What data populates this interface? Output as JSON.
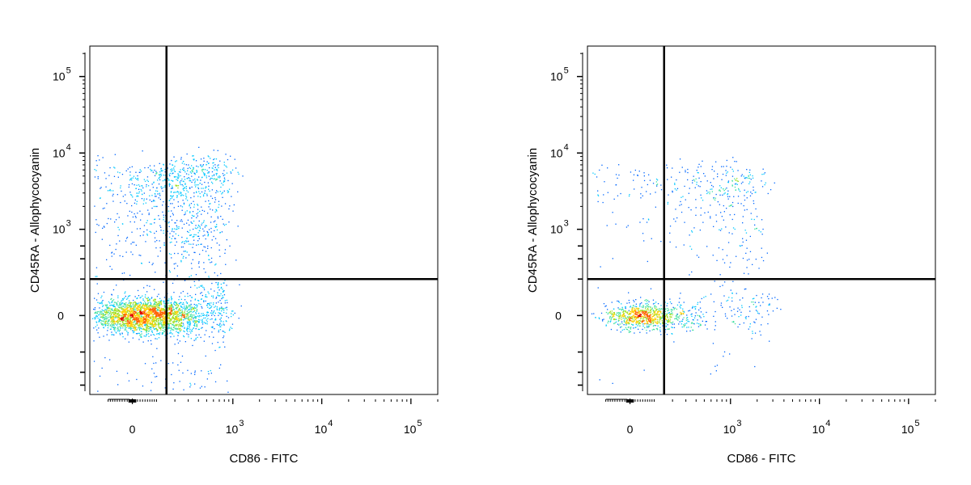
{
  "chart_data": [
    {
      "type": "scatter",
      "title": "",
      "xlabel": "CD86 - FITC",
      "ylabel": "CD45RA - Allophycocyanin",
      "xscale": "biexponential",
      "yscale": "biexponential",
      "xlim": [
        -200,
        200000
      ],
      "ylim": [
        -800,
        250000
      ],
      "x_ticks": [
        {
          "value": 0,
          "base": "0",
          "exp": ""
        },
        {
          "value": 1000,
          "base": "10",
          "exp": "3"
        },
        {
          "value": 10000,
          "base": "10",
          "exp": "4"
        },
        {
          "value": 100000,
          "base": "10",
          "exp": "5"
        }
      ],
      "y_ticks": [
        {
          "value": 0,
          "base": "0",
          "exp": ""
        },
        {
          "value": 1000,
          "base": "10",
          "exp": "3"
        },
        {
          "value": 10000,
          "base": "10",
          "exp": "4"
        },
        {
          "value": 100000,
          "base": "10",
          "exp": "5"
        }
      ],
      "quadrant_gate": {
        "x": 150,
        "y": 200
      },
      "colormap": [
        "#1a1ab0",
        "#0066ff",
        "#00c8ff",
        "#40e0a0",
        "#a0e020",
        "#ffd000",
        "#ff6000",
        "#e00000"
      ],
      "grid": false,
      "legend": "none",
      "point_clusters": [
        {
          "cx": 20,
          "cy": 0,
          "sx": 90,
          "sy": 40,
          "n": 1700
        },
        {
          "cx": 200,
          "cy": 0,
          "sx": 120,
          "sy": 40,
          "n": 600
        },
        {
          "cx": 550,
          "cy": 20,
          "sx": 250,
          "sy": 80,
          "n": 250
        },
        {
          "cx": 120,
          "cy": 3000,
          "sx": 150,
          "sy": 2000,
          "n": 450
        },
        {
          "cx": 450,
          "cy": 4500,
          "sx": 300,
          "sy": 2500,
          "n": 350
        },
        {
          "cx": 250,
          "cy": 500,
          "sx": 250,
          "sy": 600,
          "n": 350
        }
      ]
    },
    {
      "type": "scatter",
      "title": "",
      "xlabel": "CD86 - FITC",
      "ylabel": "CD45RA - Allophycocyanin",
      "xscale": "biexponential",
      "yscale": "biexponential",
      "xlim": [
        -200,
        200000
      ],
      "ylim": [
        -800,
        250000
      ],
      "x_ticks": [
        {
          "value": 0,
          "base": "0",
          "exp": ""
        },
        {
          "value": 1000,
          "base": "10",
          "exp": "3"
        },
        {
          "value": 10000,
          "base": "10",
          "exp": "4"
        },
        {
          "value": 100000,
          "base": "10",
          "exp": "5"
        }
      ],
      "y_ticks": [
        {
          "value": 0,
          "base": "0",
          "exp": ""
        },
        {
          "value": 1000,
          "base": "10",
          "exp": "3"
        },
        {
          "value": 10000,
          "base": "10",
          "exp": "4"
        },
        {
          "value": 100000,
          "base": "10",
          "exp": "5"
        }
      ],
      "quadrant_gate": {
        "x": 150,
        "y": 200
      },
      "colormap": [
        "#1a1ab0",
        "#0066ff",
        "#00c8ff",
        "#40e0a0",
        "#a0e020",
        "#ffd000",
        "#ff6000",
        "#e00000"
      ],
      "grid": false,
      "legend": "none",
      "point_clusters": [
        {
          "cx": 40,
          "cy": 0,
          "sx": 70,
          "sy": 30,
          "n": 650
        },
        {
          "cx": 220,
          "cy": 0,
          "sx": 120,
          "sy": 35,
          "n": 180
        },
        {
          "cx": 1200,
          "cy": 30,
          "sx": 900,
          "sy": 60,
          "n": 120
        },
        {
          "cx": 700,
          "cy": 3500,
          "sx": 700,
          "sy": 2000,
          "n": 280
        },
        {
          "cx": 200,
          "cy": 2800,
          "sx": 200,
          "sy": 1800,
          "n": 80
        },
        {
          "cx": 900,
          "cy": 500,
          "sx": 800,
          "sy": 500,
          "n": 90
        }
      ]
    }
  ]
}
